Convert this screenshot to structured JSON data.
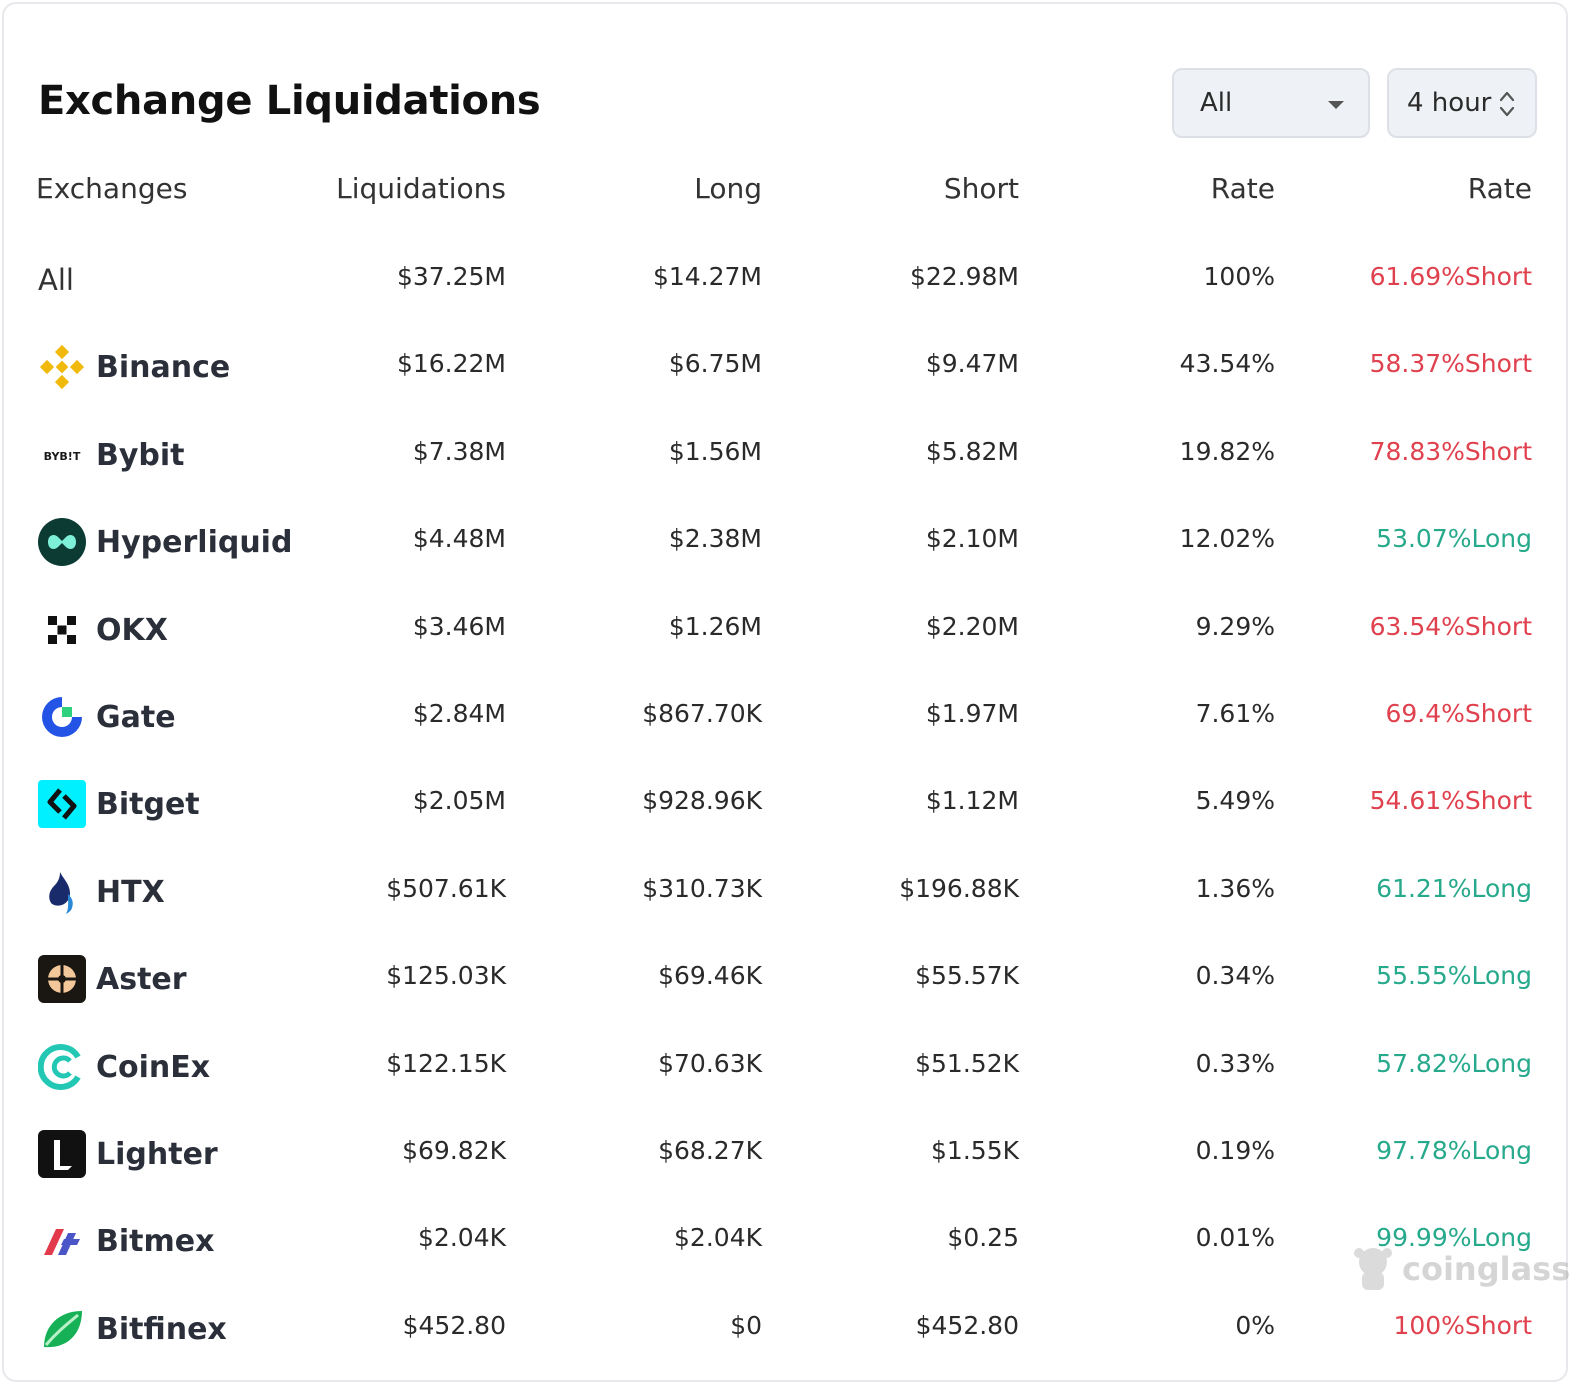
{
  "title": "Exchange Liquidations",
  "filters": {
    "scope": "All",
    "period": "4 hour"
  },
  "columns": [
    "Exchanges",
    "Liquidations",
    "Long",
    "Short",
    "Rate",
    "Rate"
  ],
  "rows": [
    {
      "exchange": "All",
      "logo": "",
      "liquidations": "$37.25M",
      "long": "$14.27M",
      "short": "$22.98M",
      "rate": "100%",
      "side_rate": "61.69%Short",
      "side": "short"
    },
    {
      "exchange": "Binance",
      "logo": "binance-icon",
      "liquidations": "$16.22M",
      "long": "$6.75M",
      "short": "$9.47M",
      "rate": "43.54%",
      "side_rate": "58.37%Short",
      "side": "short"
    },
    {
      "exchange": "Bybit",
      "logo": "bybit-icon",
      "logo_text": "BYB!T",
      "liquidations": "$7.38M",
      "long": "$1.56M",
      "short": "$5.82M",
      "rate": "19.82%",
      "side_rate": "78.83%Short",
      "side": "short"
    },
    {
      "exchange": "Hyperliquid",
      "logo": "hyperliquid-icon",
      "liquidations": "$4.48M",
      "long": "$2.38M",
      "short": "$2.10M",
      "rate": "12.02%",
      "side_rate": "53.07%Long",
      "side": "long"
    },
    {
      "exchange": "OKX",
      "logo": "okx-icon",
      "liquidations": "$3.46M",
      "long": "$1.26M",
      "short": "$2.20M",
      "rate": "9.29%",
      "side_rate": "63.54%Short",
      "side": "short"
    },
    {
      "exchange": "Gate",
      "logo": "gate-icon",
      "liquidations": "$2.84M",
      "long": "$867.70K",
      "short": "$1.97M",
      "rate": "7.61%",
      "side_rate": "69.4%Short",
      "side": "short"
    },
    {
      "exchange": "Bitget",
      "logo": "bitget-icon",
      "liquidations": "$2.05M",
      "long": "$928.96K",
      "short": "$1.12M",
      "rate": "5.49%",
      "side_rate": "54.61%Short",
      "side": "short"
    },
    {
      "exchange": "HTX",
      "logo": "htx-icon",
      "liquidations": "$507.61K",
      "long": "$310.73K",
      "short": "$196.88K",
      "rate": "1.36%",
      "side_rate": "61.21%Long",
      "side": "long"
    },
    {
      "exchange": "Aster",
      "logo": "aster-icon",
      "liquidations": "$125.03K",
      "long": "$69.46K",
      "short": "$55.57K",
      "rate": "0.34%",
      "side_rate": "55.55%Long",
      "side": "long"
    },
    {
      "exchange": "CoinEx",
      "logo": "coinex-icon",
      "liquidations": "$122.15K",
      "long": "$70.63K",
      "short": "$51.52K",
      "rate": "0.33%",
      "side_rate": "57.82%Long",
      "side": "long"
    },
    {
      "exchange": "Lighter",
      "logo": "lighter-icon",
      "liquidations": "$69.82K",
      "long": "$68.27K",
      "short": "$1.55K",
      "rate": "0.19%",
      "side_rate": "97.78%Long",
      "side": "long"
    },
    {
      "exchange": "Bitmex",
      "logo": "bitmex-icon",
      "liquidations": "$2.04K",
      "long": "$2.04K",
      "short": "$0.25",
      "rate": "0.01%",
      "side_rate": "99.99%Long",
      "side": "long"
    },
    {
      "exchange": "Bitfinex",
      "logo": "bitfinex-icon",
      "liquidations": "$452.80",
      "long": "$0",
      "short": "$452.80",
      "rate": "0%",
      "side_rate": "100%Short",
      "side": "short"
    }
  ],
  "colors": {
    "short": "#e0414e",
    "long": "#27a98b",
    "binance": "#f0b90b",
    "hyperliquid": "#0c3b33",
    "gate": "#2354e6",
    "bitget": "#00f0ff",
    "htx": "#1a2b6b",
    "coinex": "#22c8b4",
    "bitmex": "#e33a4b",
    "bitfinex": "#16b157"
  },
  "watermark": "coinglass"
}
